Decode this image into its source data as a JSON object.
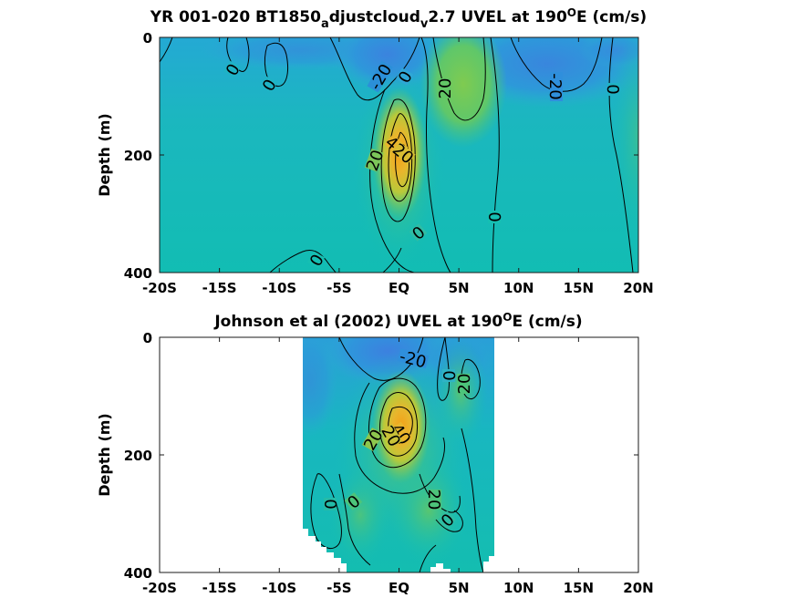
{
  "colors": {
    "background": "#ffffff",
    "colormap": [
      "#3d7fe0",
      "#2fa7d6",
      "#16bfb2",
      "#5fc76a",
      "#b9c93a",
      "#e9b52c",
      "#f3a118"
    ],
    "contour": "#000000"
  },
  "chart_data": [
    {
      "type": "heatmap",
      "title_main": "YR 001-020 BT1850",
      "title_sub_a": "a",
      "title_mid": "djustcloud",
      "title_sub_v": "v",
      "title_tail": "2.7 UVEL at 190",
      "title_sup": "O",
      "title_end": "E (cm/s)",
      "ylabel": "Depth (m)",
      "xlim": [
        -20,
        20
      ],
      "ylim": [
        0,
        400
      ],
      "x_ticks": [
        "-20S",
        "-15S",
        "-10S",
        "-5S",
        "EQ",
        "5N",
        "10N",
        "15N",
        "20N"
      ],
      "y_ticks": [
        "0",
        "200",
        "400"
      ],
      "data_x_range": [
        -20,
        20
      ],
      "contour_labels": [
        "0",
        "0",
        "-20",
        "0",
        "20",
        "-20",
        "0",
        "40",
        "20",
        "20",
        "0",
        "0",
        "0"
      ]
    },
    {
      "type": "heatmap",
      "title_main": "Johnson et al (2002) UVEL at 190",
      "title_sup": "O",
      "title_end": "E (cm/s)",
      "ylabel": "Depth (m)",
      "xlim": [
        -20,
        20
      ],
      "ylim": [
        0,
        400
      ],
      "x_ticks": [
        "-20S",
        "-15S",
        "-10S",
        "-5S",
        "EQ",
        "5N",
        "10N",
        "15N",
        "20N"
      ],
      "y_ticks": [
        "0",
        "200",
        "400"
      ],
      "data_x_range": [
        -8,
        8
      ],
      "contour_labels": [
        "-20",
        "20",
        "40",
        "20",
        "20",
        "0",
        "0",
        "0",
        "20",
        "0"
      ]
    }
  ]
}
